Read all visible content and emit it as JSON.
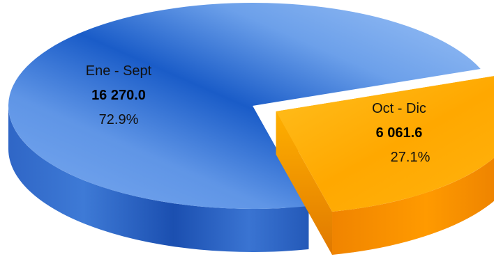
{
  "chart_data": {
    "type": "pie",
    "categories": [
      "Ene - Sept",
      "Oct - Dic"
    ],
    "values": [
      16270.0,
      6061.6
    ],
    "value_labels": [
      "16 270.0",
      "6 061.6"
    ],
    "percent_labels": [
      "72.9%",
      "27.1%"
    ],
    "percentages": [
      72.9,
      27.1
    ],
    "exploded": [
      false,
      true
    ],
    "style": "3d",
    "colors": {
      "Ene - Sept": "#3f7fde",
      "Oct - Dic": "#ffb000"
    },
    "legend": "none"
  }
}
